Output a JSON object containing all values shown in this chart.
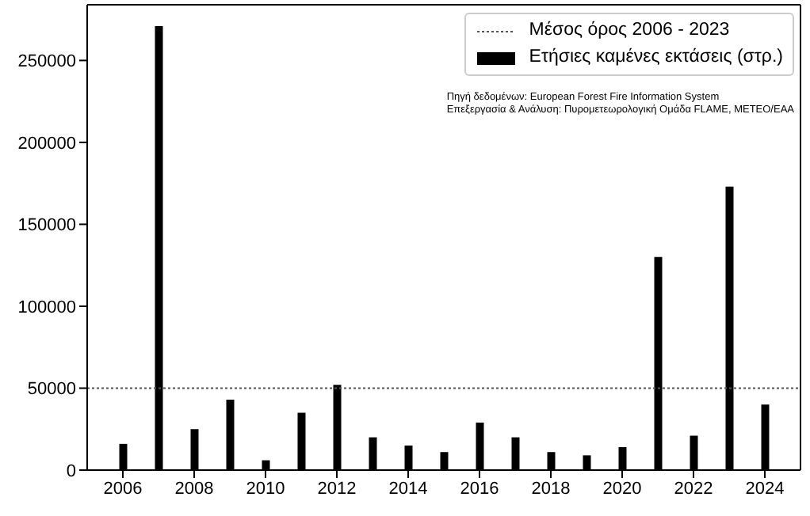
{
  "chart_data": {
    "type": "bar",
    "x": [
      2006,
      2007,
      2008,
      2009,
      2010,
      2011,
      2012,
      2013,
      2014,
      2015,
      2016,
      2017,
      2018,
      2019,
      2020,
      2021,
      2022,
      2023,
      2024
    ],
    "series": [
      {
        "name": "Ετήσιες καμένες εκτάσεις (στρ.)",
        "color": "#000000",
        "values": [
          16000,
          271000,
          25000,
          43000,
          6000,
          35000,
          52000,
          20000,
          15000,
          11000,
          29000,
          20000,
          11000,
          9000,
          14000,
          130000,
          21000,
          173000,
          40000
        ]
      }
    ],
    "xlim": [
      2005,
      2025
    ],
    "xticks": [
      2006,
      2008,
      2010,
      2012,
      2014,
      2016,
      2018,
      2020,
      2022,
      2024
    ],
    "ylim": [
      0,
      284000
    ],
    "yticks": [
      0,
      50000,
      100000,
      150000,
      200000,
      250000
    ],
    "ref_lines": [
      {
        "axis": "y",
        "value": 50000,
        "label": "Μέσος όρος 2006 - 2023",
        "color": "#555555",
        "line_style": "dotted"
      }
    ],
    "annotations": [
      "Πηγή δεδομένων: European Forest Fire Information System",
      "Επεξεργασία & Ανάλυση: Πυρομετεωρολογική Ομάδα FLAME, METEO/EAA"
    ],
    "legend": "top right"
  }
}
